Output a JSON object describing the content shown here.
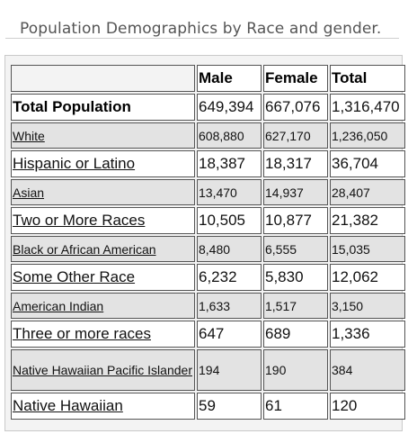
{
  "title": "Population Demographics by Race and gender.",
  "table": {
    "headers": [
      "Male",
      "Female",
      "Total"
    ],
    "total_row": {
      "label": "Total Population",
      "male": "649,394",
      "female": "667,076",
      "total": "1,316,470"
    },
    "rows": [
      {
        "label": "White",
        "male": "608,880",
        "female": "627,170",
        "total": "1,236,050"
      },
      {
        "label": "Hispanic or Latino",
        "male": "18,387",
        "female": "18,317",
        "total": "36,704"
      },
      {
        "label": "Asian",
        "male": "13,470",
        "female": "14,937",
        "total": "28,407"
      },
      {
        "label": "Two or More Races",
        "male": "10,505",
        "female": "10,877",
        "total": "21,382"
      },
      {
        "label": "Black or African American",
        "male": "8,480",
        "female": "6,555",
        "total": "15,035"
      },
      {
        "label": "Some Other Race",
        "male": "6,232",
        "female": "5,830",
        "total": "12,062"
      },
      {
        "label": "American Indian",
        "male": "1,633",
        "female": "1,517",
        "total": "3,150"
      },
      {
        "label": "Three or more races",
        "male": "647",
        "female": "689",
        "total": "1,336"
      },
      {
        "label": "Native Hawaiian Pacific Islander",
        "male": "194",
        "female": "190",
        "total": "384"
      },
      {
        "label": "Native Hawaiian",
        "male": "59",
        "female": "61",
        "total": "120"
      }
    ]
  }
}
